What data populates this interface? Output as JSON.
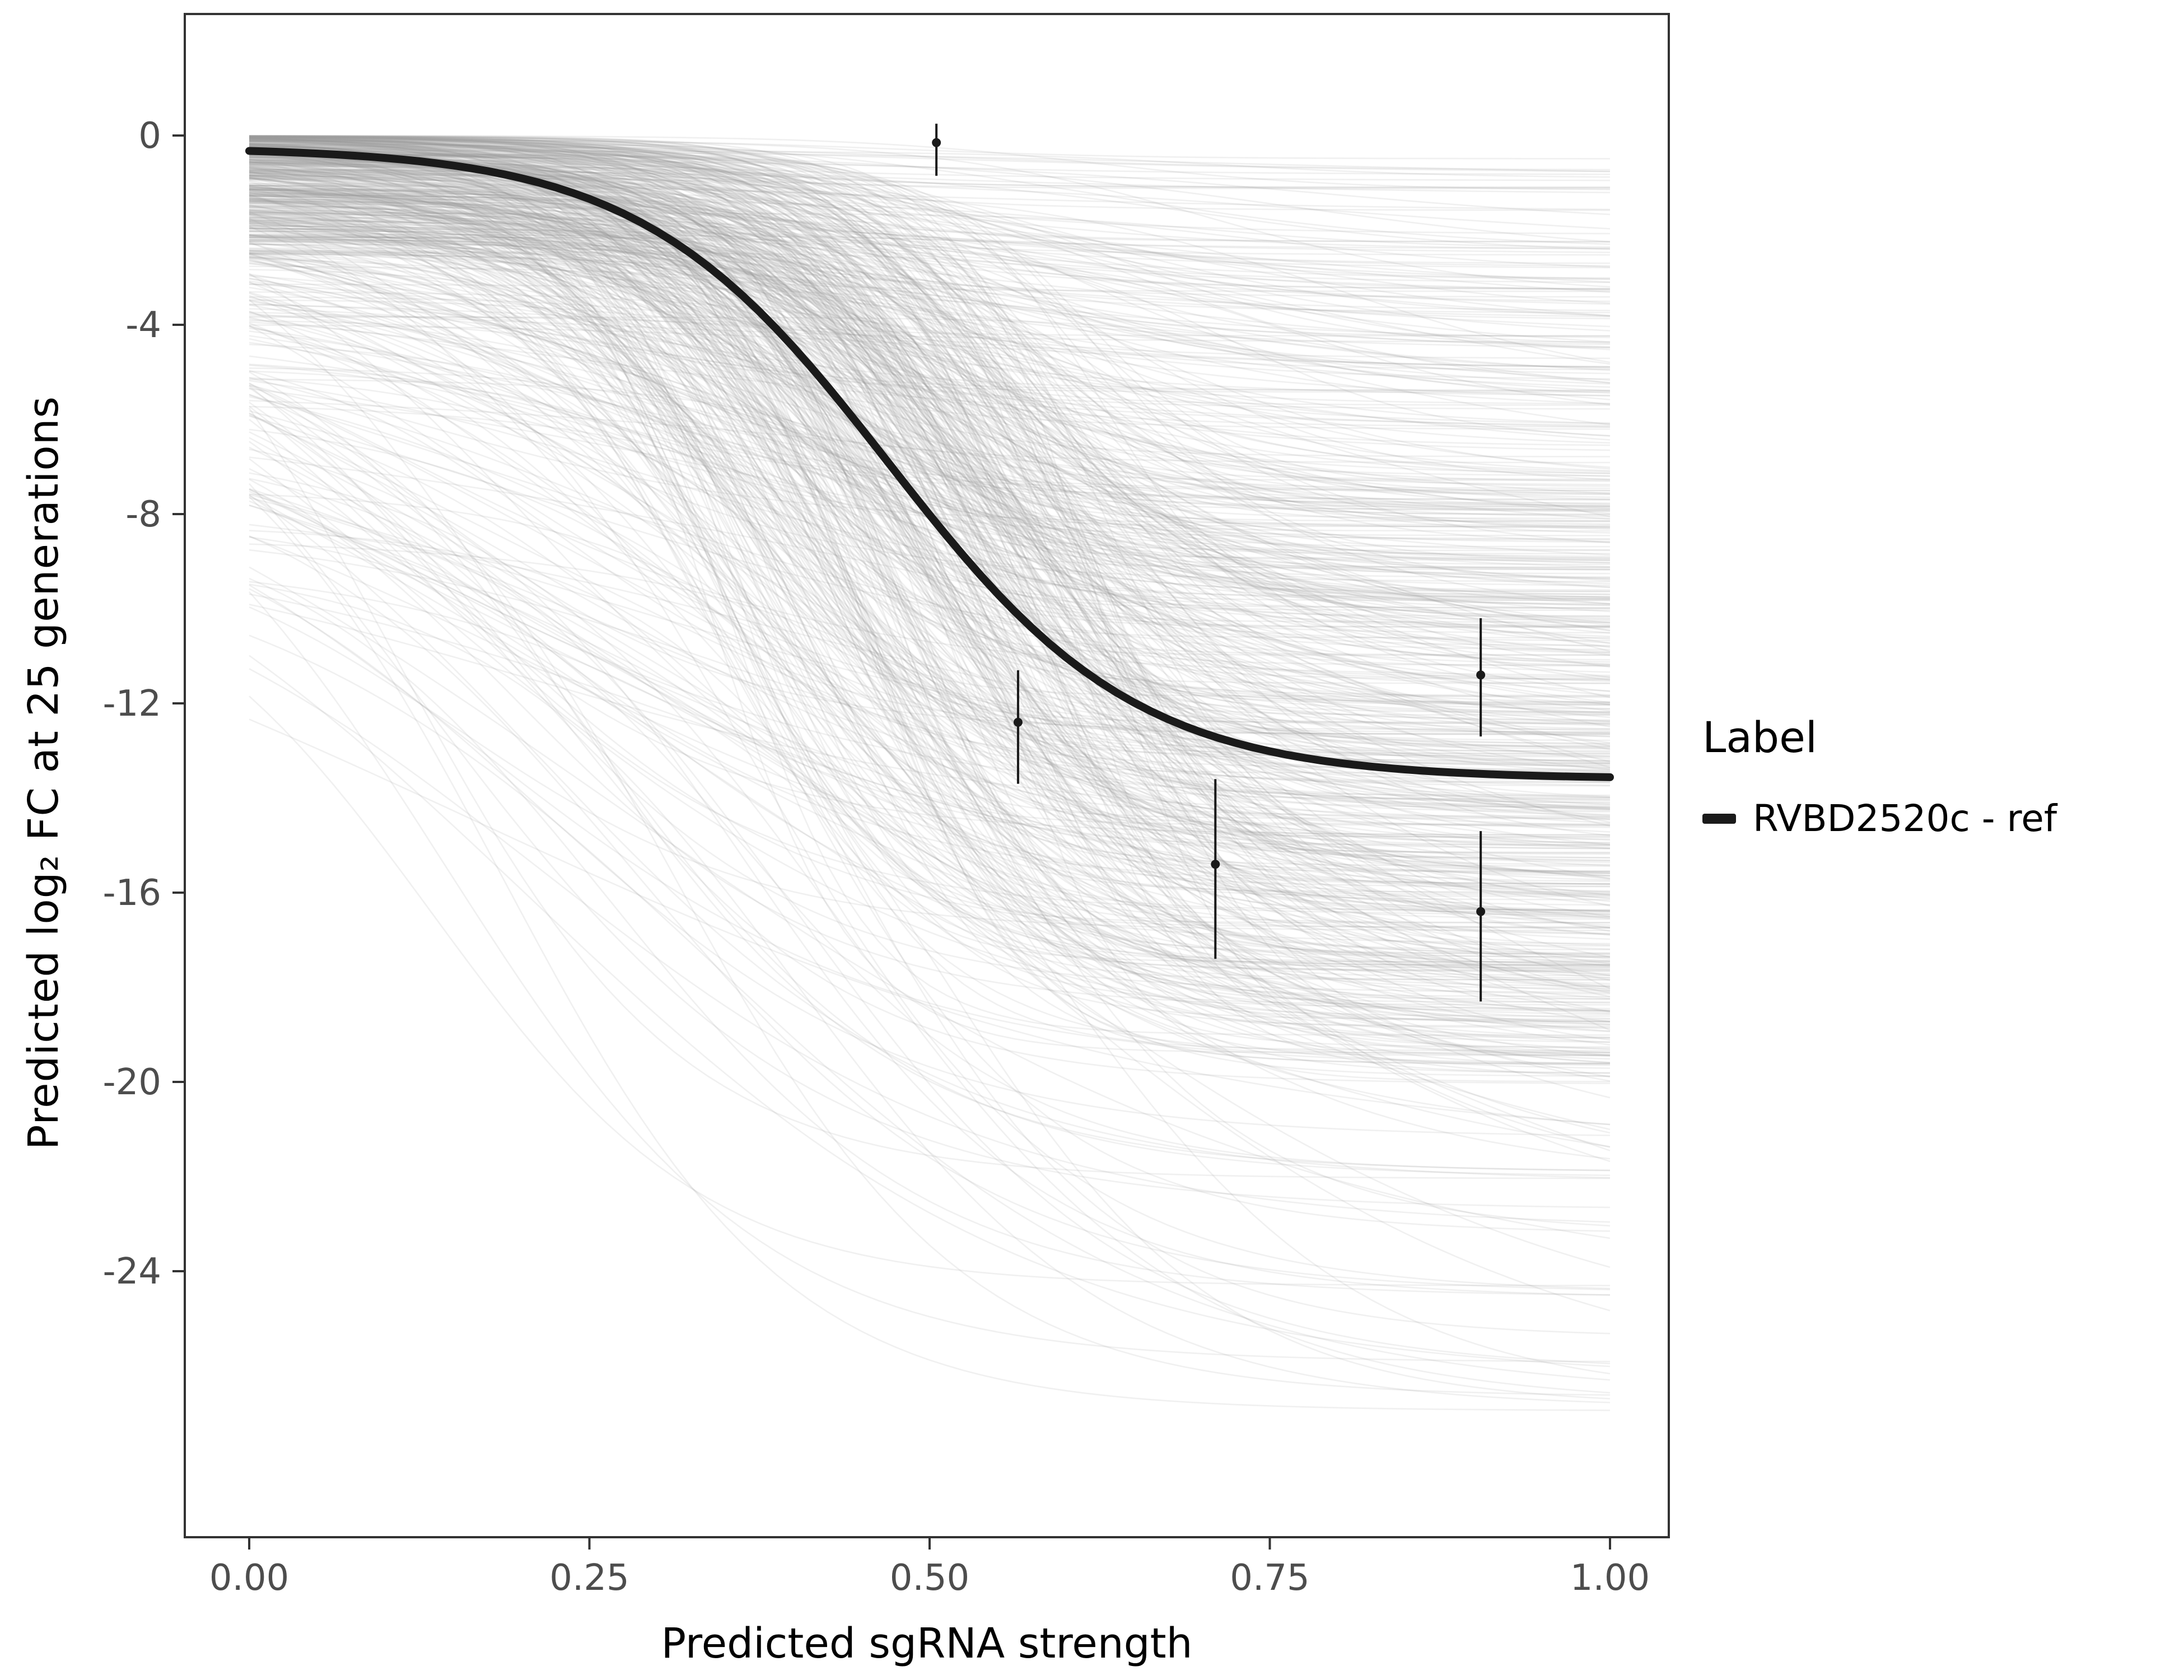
{
  "figure": {
    "background": "#ffffff"
  },
  "axes": {
    "x": {
      "title": "Predicted sgRNA strength",
      "ticks": [
        {
          "v": 0.0,
          "label": "0.00"
        },
        {
          "v": 0.25,
          "label": "0.25"
        },
        {
          "v": 0.5,
          "label": "0.50"
        },
        {
          "v": 0.75,
          "label": "0.75"
        },
        {
          "v": 1.0,
          "label": "1.00"
        }
      ]
    },
    "y": {
      "title": "Predicted  log₂ FC at 25 generations",
      "ticks": [
        {
          "v": 0,
          "label": "0"
        },
        {
          "v": -4,
          "label": "-4"
        },
        {
          "v": -8,
          "label": "-8"
        },
        {
          "v": -12,
          "label": "-12"
        },
        {
          "v": -16,
          "label": "-16"
        },
        {
          "v": -20,
          "label": "-20"
        },
        {
          "v": -24,
          "label": "-24"
        }
      ]
    }
  },
  "legend": {
    "title": "Label",
    "items": [
      {
        "label": "RVBD2520c - ref",
        "color": "#1a1a1a"
      }
    ]
  },
  "chart_data": {
    "type": "line",
    "title": "",
    "xlabel": "Predicted sgRNA strength",
    "ylabel": "Predicted log2 FC at 25 generations",
    "xlim": [
      0,
      1
    ],
    "ylim": [
      -29.5,
      2.5
    ],
    "grid": false,
    "legend_position": "right",
    "main_curve": {
      "label": "RVBD2520c - ref",
      "model": "logistic",
      "upper_asymptote": -0.25,
      "lower_asymptote": -13.6,
      "midpoint": 0.47,
      "steepness": 11,
      "color": "#1a1a1a",
      "width": 14
    },
    "points_with_errorbars": [
      {
        "x": 0.505,
        "y": -0.15,
        "ymin": -0.85,
        "ymax": 0.25
      },
      {
        "x": 0.565,
        "y": -12.4,
        "ymin": -13.7,
        "ymax": -11.3
      },
      {
        "x": 0.71,
        "y": -15.4,
        "ymin": -17.4,
        "ymax": -13.6
      },
      {
        "x": 0.905,
        "y": -11.4,
        "ymin": -12.7,
        "ymax": -10.2
      },
      {
        "x": 0.905,
        "y": -16.4,
        "ymin": -18.3,
        "ymax": -14.7
      }
    ],
    "background_curves": {
      "description": "ensemble of per-gene logistic fit curves",
      "count": 680,
      "seed": 20240613,
      "color": "#9a9a9a",
      "opacity": 0.15,
      "width": 2.6,
      "groups": [
        {
          "weight": 0.62,
          "a_max": 2.5,
          "x0": [
            0.33,
            0.63
          ],
          "k": [
            8,
            20
          ],
          "b_abs": [
            7,
            20
          ]
        },
        {
          "weight": 0.26,
          "a_max": 9.0,
          "x0": [
            0.1,
            0.65
          ],
          "k": [
            3,
            10
          ],
          "drop": [
            3,
            23
          ]
        },
        {
          "weight": 0.12,
          "a_max": 4.0,
          "x0": [
            0.2,
            0.8
          ],
          "k": [
            4,
            14
          ],
          "drop": [
            0.4,
            4.4
          ]
        }
      ]
    }
  }
}
